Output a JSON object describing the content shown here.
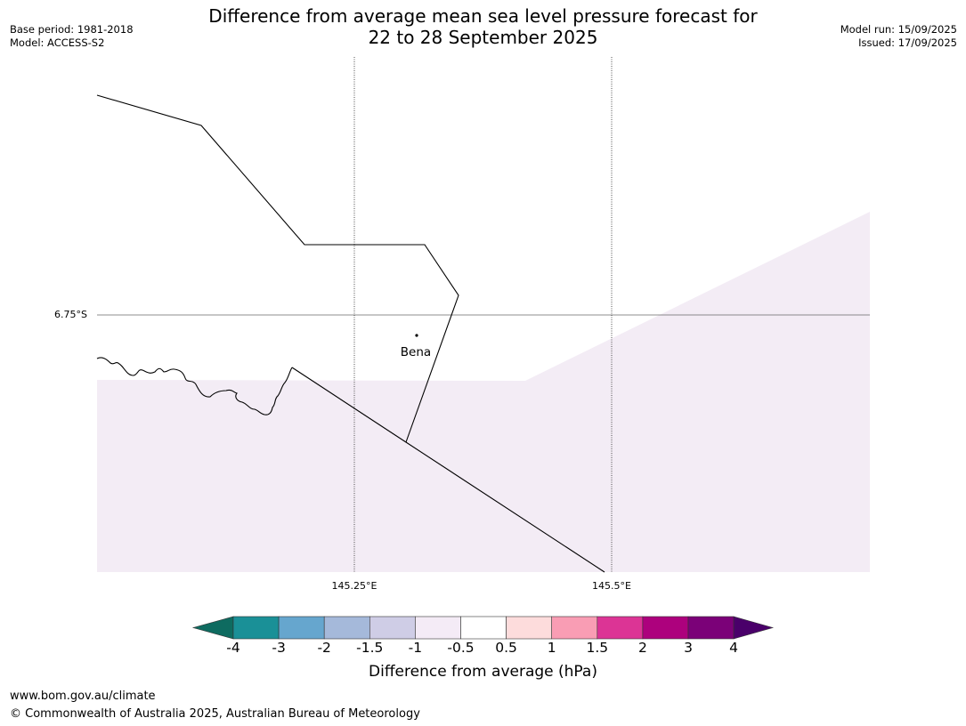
{
  "title": {
    "line1": "Difference from average mean sea level pressure forecast for",
    "line2": "22 to 28 September 2025"
  },
  "meta": {
    "base_period": "Base period: 1981-2018",
    "model": "Model: ACCESS-S2",
    "model_run": "Model run: 15/09/2025",
    "issued": "Issued: 17/09/2025"
  },
  "map": {
    "latitude_labels": [
      "6.75°S"
    ],
    "longitude_labels": [
      "145.25°E",
      "145.5°E"
    ],
    "place_label": "Bena",
    "fill_color": "#f3ecf5",
    "category_shown": "-1 to -0.5"
  },
  "colorbar": {
    "tick_labels": [
      "-4",
      "-3",
      "-2",
      "-1.5",
      "-1",
      "-0.5",
      "0.5",
      "1",
      "1.5",
      "2",
      "3",
      "4"
    ],
    "colors": [
      "#0e6b60",
      "#1a9097",
      "#66a6ce",
      "#a5b9da",
      "#cfcde6",
      "#f4ebf6",
      "#ffffff",
      "#fddcdc",
      "#f99db4",
      "#dc3495",
      "#ad017d",
      "#7b0178",
      "#4a006a"
    ],
    "label": "Difference from average (hPa)"
  },
  "footer": {
    "url": "www.bom.gov.au/climate",
    "copyright": "© Commonwealth of Australia 2025, Australian Bureau of Meteorology"
  }
}
